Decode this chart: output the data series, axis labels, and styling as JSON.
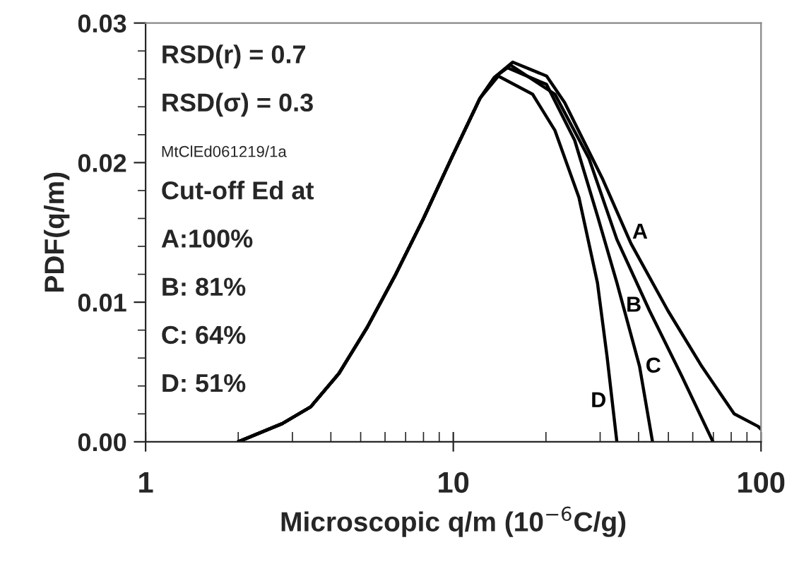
{
  "chart_data": {
    "type": "line",
    "xlabel": "Microscopic q/m (10$^{−6}$C/g)",
    "ylabel": "PDF(q/m)",
    "log": "x",
    "xlim": [
      1,
      100
    ],
    "xticks": [
      1,
      10,
      100
    ],
    "ylim": [
      0,
      0.03
    ],
    "yticks": [
      {
        "value": 0,
        "label": "0.00"
      },
      {
        "value": 0.01,
        "label": "0.01"
      },
      {
        "value": 0.02,
        "label": "0.02"
      },
      {
        "value": 0.03,
        "label": "0.03"
      }
    ],
    "grid": false,
    "legend": false,
    "marker": "none",
    "line_style": "solid",
    "series": [
      {
        "name": "A",
        "color": "#000000",
        "x": [
          2.0,
          2.78,
          3.44,
          4.25,
          5.25,
          6.5,
          8.0,
          9.9,
          12.2,
          13.6,
          15.6,
          20.1,
          23.0,
          30.6,
          37.8,
          49.8,
          64.2,
          81.8,
          97.9,
          100
        ],
        "values": [
          0,
          0.0013,
          0.0025,
          0.0049,
          0.0082,
          0.012,
          0.016,
          0.0204,
          0.0246,
          0.0261,
          0.0272,
          0.0262,
          0.0243,
          0.0188,
          0.0142,
          0.0094,
          0.0054,
          0.002,
          0.0011,
          0.0009
        ]
      },
      {
        "name": "B",
        "color": "#000000",
        "x": [
          2.0,
          2.78,
          3.44,
          4.25,
          5.25,
          6.5,
          8.0,
          9.9,
          12.2,
          13.6,
          15.3,
          21.4,
          27.6,
          34.0,
          43.4,
          55.3,
          69.8
        ],
        "values": [
          0,
          0.0013,
          0.0025,
          0.0049,
          0.0082,
          0.012,
          0.016,
          0.0204,
          0.0246,
          0.0261,
          0.027,
          0.0249,
          0.0203,
          0.0145,
          0.0094,
          0.0047,
          0
        ]
      },
      {
        "name": "C",
        "color": "#000000",
        "x": [
          2.0,
          2.78,
          3.44,
          4.25,
          5.25,
          6.5,
          8.0,
          9.9,
          12.2,
          13.6,
          15.0,
          20.1,
          24.8,
          29.4,
          34.0,
          40.3,
          44.4
        ],
        "values": [
          0,
          0.0013,
          0.0025,
          0.0049,
          0.0082,
          0.012,
          0.016,
          0.0204,
          0.0246,
          0.0261,
          0.0268,
          0.0256,
          0.0216,
          0.0162,
          0.0114,
          0.0054,
          0
        ]
      },
      {
        "name": "D",
        "color": "#000000",
        "x": [
          2.0,
          2.78,
          3.44,
          4.25,
          5.25,
          6.5,
          8.0,
          9.9,
          12.2,
          14.0,
          18.1,
          21.4,
          25.6,
          29.4,
          31.6,
          34.0
        ],
        "values": [
          0,
          0.0013,
          0.0025,
          0.0049,
          0.0082,
          0.012,
          0.016,
          0.0204,
          0.0246,
          0.0262,
          0.0249,
          0.0223,
          0.0175,
          0.0114,
          0.0061,
          0
        ]
      }
    ],
    "annotations": [
      "RSD(r) = 0.7",
      "RSD(σ) = 0.3",
      "MtClEd061219/1a",
      "Cut-off Ed at",
      "A:100%",
      "B: 81%",
      "C: 64%",
      "D: 51%"
    ]
  }
}
